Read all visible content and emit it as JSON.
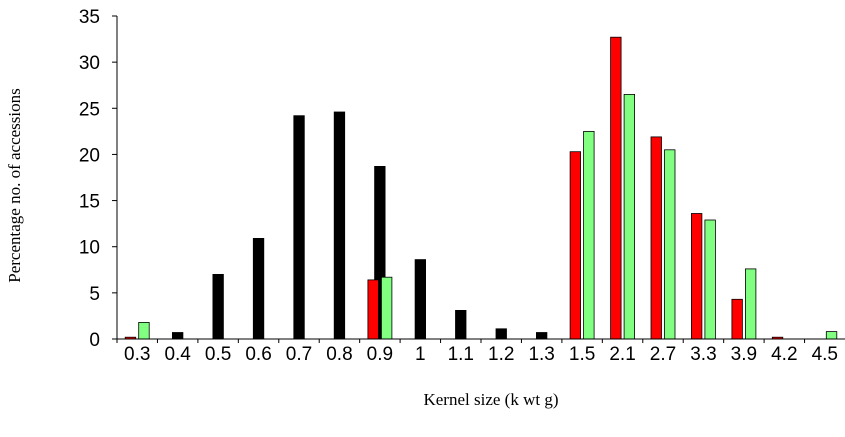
{
  "chart_data": {
    "type": "bar",
    "title": "",
    "xlabel": "Kernel size (k wt g)",
    "ylabel": "Percentage no. of accessions",
    "ylim": [
      0,
      35
    ],
    "yticks": [
      0,
      5,
      10,
      15,
      20,
      25,
      30,
      35
    ],
    "grid": false,
    "legend": "none",
    "categories": [
      "0.3",
      "0.4",
      "0.5",
      "0.6",
      "0.7",
      "0.8",
      "0.9",
      "1",
      "1.1",
      "1.2",
      "1.3",
      "1.5",
      "2.1",
      "2.7",
      "3.3",
      "3.9",
      "4.2",
      "4.5"
    ],
    "series": [
      {
        "color": "#000000",
        "values": [
          null,
          0.7,
          7.0,
          10.9,
          24.2,
          24.6,
          18.7,
          8.6,
          3.1,
          1.1,
          0.7,
          null,
          null,
          null,
          null,
          null,
          null,
          null
        ]
      },
      {
        "color": "#ff0000",
        "values": [
          0.2,
          null,
          null,
          null,
          null,
          null,
          6.4,
          null,
          null,
          null,
          null,
          20.3,
          32.7,
          21.9,
          13.6,
          4.3,
          0.2,
          null
        ]
      },
      {
        "color": "#80ff80",
        "values": [
          1.8,
          null,
          null,
          null,
          null,
          null,
          6.7,
          null,
          null,
          null,
          null,
          22.5,
          26.5,
          20.5,
          12.9,
          7.6,
          null,
          0.8
        ]
      }
    ]
  }
}
